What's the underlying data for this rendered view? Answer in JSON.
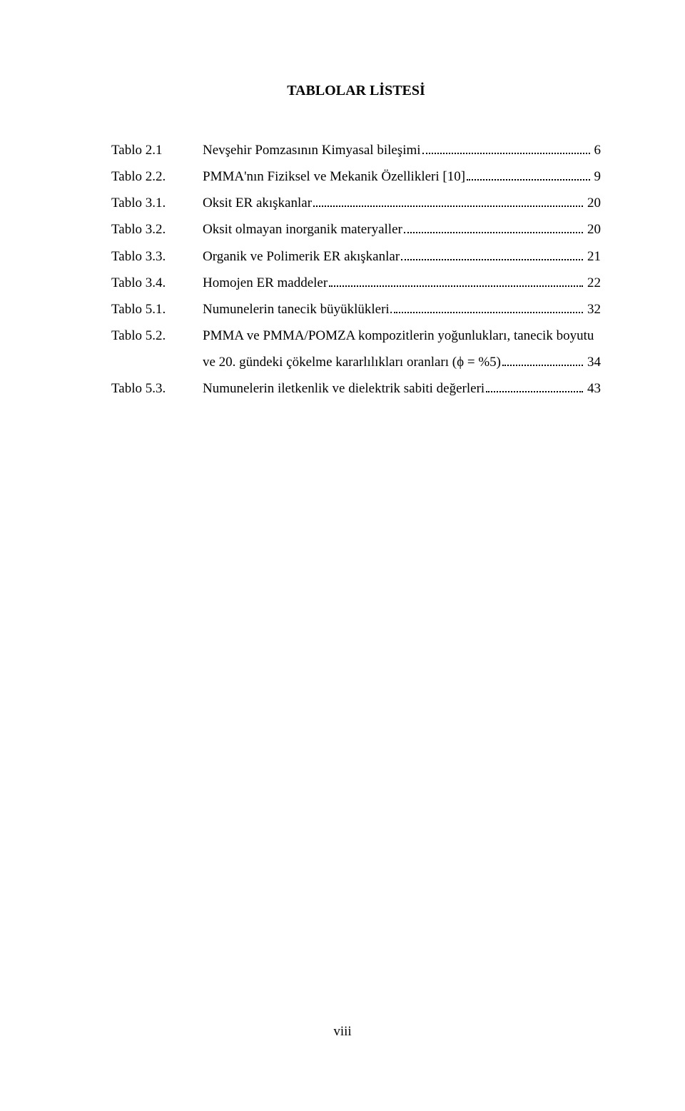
{
  "title": "TABLOLAR LİSTESİ",
  "entries": [
    {
      "label": "Tablo 2.1",
      "text": "Nevşehir Pomzasının Kimyasal bileşimi",
      "page": "6"
    },
    {
      "label": "Tablo 2.2.",
      "text": "PMMA'nın Fiziksel ve Mekanik Özellikleri [10]",
      "page": "9"
    },
    {
      "label": "Tablo 3.1.",
      "text": "Oksit ER akışkanlar",
      "page": "20"
    },
    {
      "label": "Tablo 3.2.",
      "text": "Oksit olmayan inorganik materyaller",
      "page": "20"
    },
    {
      "label": "Tablo 3.3.",
      "text": "Organik ve Polimerik ER akışkanlar",
      "page": "21"
    },
    {
      "label": "Tablo 3.4.",
      "text": "Homojen ER maddeler",
      "page": "22"
    },
    {
      "label": "Tablo 5.1.",
      "text": "Numunelerin tanecik büyüklükleri.",
      "page": "32"
    },
    {
      "label": "Tablo 5.2.",
      "text": "PMMA ve PMMA/POMZA kompozitlerin yoğunlukları, tanecik boyutu",
      "page": ""
    },
    {
      "label": "",
      "text": "ve 20. gündeki çökelme kararlılıkları oranları (ϕ = %5)",
      "page": "34",
      "cont": true
    },
    {
      "label": "Tablo 5.3.",
      "text": "Numunelerin iletkenlik ve dielektrik sabiti değerleri",
      "page": "43"
    }
  ],
  "page_number": "viii"
}
